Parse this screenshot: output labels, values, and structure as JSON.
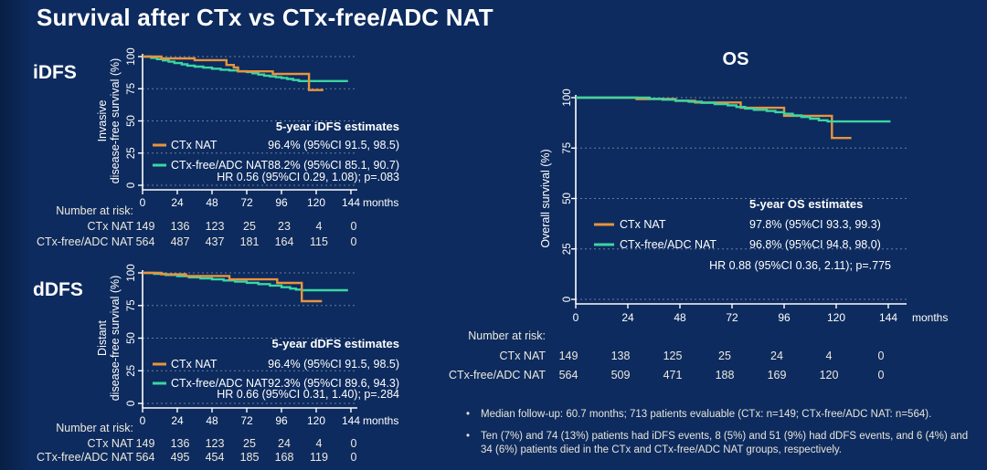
{
  "slide": {
    "title": "Survival after CTx vs CTx-free/ADC NAT",
    "background_color": "#0d2b5e",
    "accent_colors": {
      "ctx_nat": "#E8943D",
      "ctx_free_adc_nat": "#3BD6A2"
    }
  },
  "footnotes": {
    "bullets": [
      "Median follow-up: 60.7 months; 713 patients evaluable (CTx: n=149; CTx-free/ADC NAT: n=564).",
      "Ten (7%) and 74 (13%) patients had iDFS events, 8 (5%) and 51 (9%) had dDFS events, and 6 (4%) and 34 (6%) patients died in the CTx and CTx-free/ADC NAT groups, respectively."
    ]
  },
  "chart_data": [
    {
      "id": "idfs",
      "type": "line",
      "panel_label": "iDFS",
      "ylabel_lines": [
        "Invasive",
        "disease-free survival (%)"
      ],
      "x_ticks": [
        0,
        24,
        48,
        72,
        96,
        120,
        144
      ],
      "x_unit": "months",
      "y_ticks": [
        0,
        25,
        50,
        75,
        100
      ],
      "ylim": [
        0,
        100
      ],
      "grid": "dotted-horizontal",
      "series": [
        {
          "name": "CTx NAT",
          "color": "#E8943D",
          "steps": [
            [
              0,
              100
            ],
            [
              13,
              100
            ],
            [
              13,
              98.6
            ],
            [
              36,
              98.6
            ],
            [
              36,
              97.2
            ],
            [
              58,
              97.2
            ],
            [
              58,
              93.5
            ],
            [
              63,
              93.5
            ],
            [
              63,
              91.5
            ],
            [
              66,
              91.5
            ],
            [
              66,
              88.5
            ],
            [
              90,
              88.5
            ],
            [
              90,
              86.5
            ],
            [
              115,
              86.5
            ],
            [
              115,
              74
            ],
            [
              125,
              74
            ]
          ]
        },
        {
          "name": "CTx-free/ADC NAT",
          "color": "#3BD6A2",
          "steps": [
            [
              0,
              100
            ],
            [
              6,
              99
            ],
            [
              10,
              98
            ],
            [
              14,
              97
            ],
            [
              18,
              96
            ],
            [
              22,
              95
            ],
            [
              27,
              94
            ],
            [
              31,
              93
            ],
            [
              36,
              92.2
            ],
            [
              42,
              91.4
            ],
            [
              48,
              90.6
            ],
            [
              54,
              89.8
            ],
            [
              60,
              89.2
            ],
            [
              66,
              88.6
            ],
            [
              72,
              88
            ],
            [
              76,
              87
            ],
            [
              80,
              86
            ],
            [
              84,
              85.2
            ],
            [
              88,
              84.6
            ],
            [
              92,
              84
            ],
            [
              96,
              83.4
            ],
            [
              100,
              82.6
            ],
            [
              104,
              81.8
            ],
            [
              108,
              81
            ],
            [
              142,
              81
            ]
          ]
        }
      ],
      "stats": {
        "title": "5-year iDFS estimates",
        "values": [
          "96.4% (95%CI 91.5, 98.5)",
          "88.2% (95%CI 85.1, 90.7)"
        ],
        "hr": "HR 0.56 (95%CI 0.29, 1.08); p=.083"
      },
      "risk_table": {
        "header": "Number at risk:",
        "rows": [
          {
            "label": "CTx NAT",
            "values": [
              149,
              136,
              123,
              25,
              23,
              4,
              0
            ]
          },
          {
            "label": "CTx-free/ADC NAT",
            "values": [
              564,
              487,
              437,
              181,
              164,
              115,
              0
            ]
          }
        ]
      }
    },
    {
      "id": "ddfs",
      "type": "line",
      "panel_label": "dDFS",
      "ylabel_lines": [
        "Distant",
        "disease-free survival (%)"
      ],
      "x_ticks": [
        0,
        24,
        48,
        72,
        96,
        120,
        144
      ],
      "x_unit": "months",
      "y_ticks": [
        0,
        25,
        50,
        75,
        100
      ],
      "ylim": [
        0,
        100
      ],
      "grid": "dotted-horizontal",
      "series": [
        {
          "name": "CTx NAT",
          "color": "#E8943D",
          "steps": [
            [
              0,
              100
            ],
            [
              13,
              100
            ],
            [
              13,
              98.9
            ],
            [
              30,
              98.9
            ],
            [
              30,
              97.6
            ],
            [
              60,
              97.6
            ],
            [
              60,
              95
            ],
            [
              93,
              95
            ],
            [
              93,
              92.3
            ],
            [
              110,
              92.3
            ],
            [
              110,
              78.3
            ],
            [
              124,
              78.3
            ]
          ]
        },
        {
          "name": "CTx-free/ADC NAT",
          "color": "#3BD6A2",
          "steps": [
            [
              0,
              100
            ],
            [
              8,
              99.3
            ],
            [
              16,
              98.4
            ],
            [
              24,
              97.5
            ],
            [
              32,
              96.6
            ],
            [
              40,
              95.8
            ],
            [
              48,
              95
            ],
            [
              56,
              94.2
            ],
            [
              64,
              93.3
            ],
            [
              72,
              92.4
            ],
            [
              80,
              91.4
            ],
            [
              88,
              90.3
            ],
            [
              96,
              89
            ],
            [
              102,
              88
            ],
            [
              106,
              87.2
            ],
            [
              110,
              86.7
            ],
            [
              142,
              86.7
            ]
          ]
        }
      ],
      "stats": {
        "title": "5-year dDFS estimates",
        "values": [
          "96.4% (95%CI 91.5, 98.5)",
          "92.3% (95%CI 89.6, 94.3)"
        ],
        "hr": "HR 0.66 (95%CI 0.31, 1.40); p=.284"
      },
      "risk_table": {
        "header": "Number at risk:",
        "rows": [
          {
            "label": "CTx NAT",
            "values": [
              149,
              136,
              123,
              25,
              24,
              4,
              0
            ]
          },
          {
            "label": "CTx-free/ADC NAT",
            "values": [
              564,
              495,
              454,
              185,
              168,
              119,
              0
            ]
          }
        ]
      }
    },
    {
      "id": "os",
      "type": "line",
      "panel_label": "OS",
      "ylabel_lines": [
        "Overall survival (%)"
      ],
      "x_ticks": [
        0,
        24,
        48,
        72,
        96,
        120,
        144
      ],
      "x_unit": "months",
      "y_ticks": [
        0,
        25,
        50,
        75,
        100
      ],
      "ylim": [
        0,
        100
      ],
      "grid": "dotted-horizontal",
      "series": [
        {
          "name": "CTx NAT",
          "color": "#E8943D",
          "steps": [
            [
              0,
              100
            ],
            [
              28,
              100
            ],
            [
              28,
              99.3
            ],
            [
              46,
              99.3
            ],
            [
              46,
              98.4
            ],
            [
              55,
              98.4
            ],
            [
              55,
              97.6
            ],
            [
              76,
              97.6
            ],
            [
              76,
              95
            ],
            [
              96,
              95
            ],
            [
              96,
              91
            ],
            [
              118,
              91
            ],
            [
              118,
              80
            ],
            [
              127,
              80
            ]
          ]
        },
        {
          "name": "CTx-free/ADC NAT",
          "color": "#3BD6A2",
          "steps": [
            [
              0,
              100
            ],
            [
              30,
              100
            ],
            [
              34,
              99.4
            ],
            [
              40,
              99
            ],
            [
              46,
              98.5
            ],
            [
              52,
              98
            ],
            [
              58,
              97.4
            ],
            [
              64,
              96.8
            ],
            [
              70,
              96.2
            ],
            [
              74,
              95.4
            ],
            [
              78,
              94.6
            ],
            [
              82,
              94
            ],
            [
              88,
              93.4
            ],
            [
              92,
              92.8
            ],
            [
              96,
              92
            ],
            [
              100,
              91.2
            ],
            [
              104,
              90.4
            ],
            [
              108,
              89.6
            ],
            [
              112,
              88.8
            ],
            [
              116,
              88.2
            ],
            [
              145,
              88.2
            ]
          ]
        }
      ],
      "stats": {
        "title": "5-year OS estimates",
        "values": [
          "97.8% (95%CI 93.3, 99.3)",
          "96.8% (95%CI 94.8, 98.0)"
        ],
        "hr": "HR 0.88 (95%CI 0.36, 2.11); p=.775"
      },
      "risk_table": {
        "header": "Number at risk:",
        "rows": [
          {
            "label": "CTx NAT",
            "values": [
              149,
              138,
              125,
              25,
              24,
              4,
              0
            ]
          },
          {
            "label": "CTx-free/ADC NAT",
            "values": [
              564,
              509,
              471,
              188,
              169,
              120,
              0
            ]
          }
        ]
      }
    }
  ]
}
